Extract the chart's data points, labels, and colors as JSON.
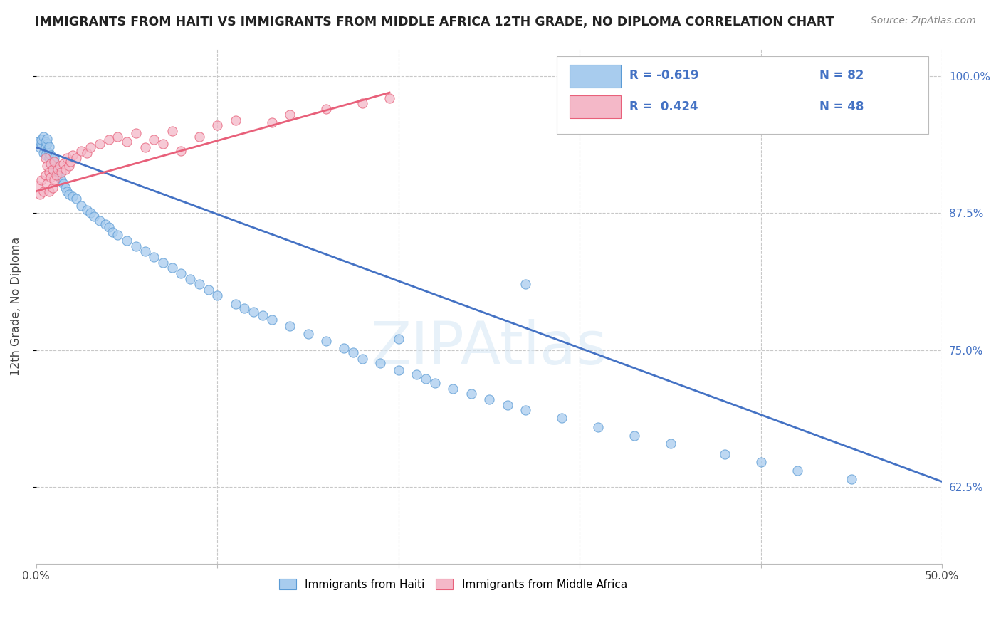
{
  "title": "IMMIGRANTS FROM HAITI VS IMMIGRANTS FROM MIDDLE AFRICA 12TH GRADE, NO DIPLOMA CORRELATION CHART",
  "source": "Source: ZipAtlas.com",
  "ylabel_label": "12th Grade, No Diploma",
  "xlim": [
    0.0,
    0.5
  ],
  "ylim": [
    0.555,
    1.025
  ],
  "ytick_positions": [
    0.625,
    0.75,
    0.875,
    1.0
  ],
  "yticklabels": [
    "62.5%",
    "75.0%",
    "87.5%",
    "100.0%"
  ],
  "color_haiti": "#A8CCEE",
  "color_haiti_edge": "#5B9BD5",
  "color_africa": "#F4B8C8",
  "color_africa_edge": "#E8607A",
  "color_haiti_line": "#4472C4",
  "color_africa_line": "#E8607A",
  "label_haiti": "Immigrants from Haiti",
  "label_middle_africa": "Immigrants from Middle Africa",
  "watermark": "ZIPAtlas",
  "background_color": "#FFFFFF",
  "grid_color": "#C8C8C8",
  "haiti_x": [
    0.001,
    0.002,
    0.003,
    0.003,
    0.004,
    0.004,
    0.005,
    0.005,
    0.005,
    0.006,
    0.006,
    0.006,
    0.007,
    0.007,
    0.007,
    0.008,
    0.008,
    0.009,
    0.009,
    0.01,
    0.01,
    0.011,
    0.012,
    0.013,
    0.014,
    0.015,
    0.016,
    0.017,
    0.018,
    0.02,
    0.022,
    0.025,
    0.028,
    0.03,
    0.032,
    0.035,
    0.038,
    0.04,
    0.042,
    0.045,
    0.05,
    0.055,
    0.06,
    0.065,
    0.07,
    0.075,
    0.08,
    0.085,
    0.09,
    0.095,
    0.1,
    0.11,
    0.115,
    0.12,
    0.125,
    0.13,
    0.14,
    0.15,
    0.16,
    0.17,
    0.175,
    0.18,
    0.19,
    0.2,
    0.21,
    0.215,
    0.22,
    0.23,
    0.24,
    0.25,
    0.26,
    0.27,
    0.29,
    0.31,
    0.33,
    0.35,
    0.38,
    0.4,
    0.42,
    0.45,
    0.2,
    0.27
  ],
  "haiti_y": [
    0.94,
    0.935,
    0.938,
    0.942,
    0.93,
    0.945,
    0.928,
    0.935,
    0.94,
    0.932,
    0.938,
    0.943,
    0.925,
    0.93,
    0.936,
    0.92,
    0.928,
    0.915,
    0.922,
    0.918,
    0.925,
    0.912,
    0.91,
    0.908,
    0.905,
    0.902,
    0.898,
    0.895,
    0.892,
    0.89,
    0.888,
    0.882,
    0.878,
    0.875,
    0.872,
    0.868,
    0.865,
    0.862,
    0.858,
    0.855,
    0.85,
    0.845,
    0.84,
    0.835,
    0.83,
    0.825,
    0.82,
    0.815,
    0.81,
    0.805,
    0.8,
    0.792,
    0.788,
    0.785,
    0.782,
    0.778,
    0.772,
    0.765,
    0.758,
    0.752,
    0.748,
    0.742,
    0.738,
    0.732,
    0.728,
    0.724,
    0.72,
    0.715,
    0.71,
    0.705,
    0.7,
    0.695,
    0.688,
    0.68,
    0.672,
    0.665,
    0.655,
    0.648,
    0.64,
    0.632,
    0.76,
    0.81
  ],
  "africa_x": [
    0.001,
    0.002,
    0.003,
    0.004,
    0.005,
    0.005,
    0.006,
    0.006,
    0.007,
    0.007,
    0.008,
    0.008,
    0.009,
    0.009,
    0.01,
    0.01,
    0.011,
    0.012,
    0.013,
    0.014,
    0.015,
    0.016,
    0.017,
    0.018,
    0.019,
    0.02,
    0.022,
    0.025,
    0.028,
    0.03,
    0.035,
    0.04,
    0.045,
    0.05,
    0.055,
    0.06,
    0.065,
    0.07,
    0.075,
    0.08,
    0.09,
    0.1,
    0.11,
    0.13,
    0.14,
    0.16,
    0.18,
    0.195
  ],
  "africa_y": [
    0.9,
    0.892,
    0.905,
    0.895,
    0.91,
    0.925,
    0.902,
    0.918,
    0.895,
    0.912,
    0.908,
    0.92,
    0.898,
    0.915,
    0.905,
    0.922,
    0.91,
    0.915,
    0.918,
    0.912,
    0.92,
    0.915,
    0.925,
    0.918,
    0.922,
    0.928,
    0.925,
    0.932,
    0.93,
    0.935,
    0.938,
    0.942,
    0.945,
    0.94,
    0.948,
    0.935,
    0.942,
    0.938,
    0.95,
    0.932,
    0.945,
    0.955,
    0.96,
    0.958,
    0.965,
    0.97,
    0.975,
    0.98
  ],
  "haiti_line_x0": 0.0,
  "haiti_line_x1": 0.5,
  "haiti_line_y0": 0.935,
  "haiti_line_y1": 0.63,
  "africa_line_x0": 0.0,
  "africa_line_x1": 0.195,
  "africa_line_y0": 0.895,
  "africa_line_y1": 0.985
}
